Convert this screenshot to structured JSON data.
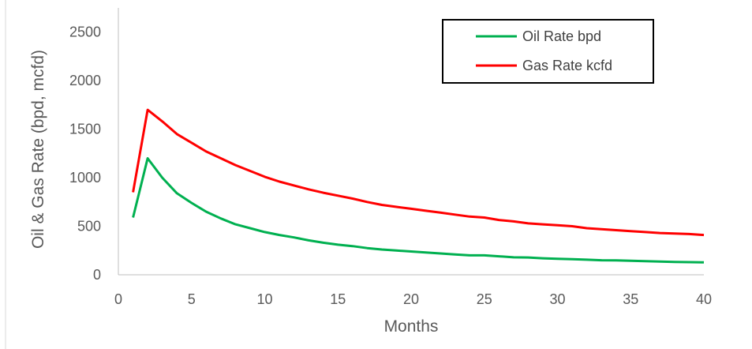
{
  "chart_data": {
    "type": "line",
    "xlabel": "Months",
    "ylabel": "Oil & Gas Rate (bpd, mcfd)",
    "xlim": [
      0,
      40
    ],
    "ylim": [
      0,
      2750
    ],
    "xticks": [
      0,
      5,
      10,
      15,
      20,
      25,
      30,
      35,
      40
    ],
    "yticks": [
      0,
      500,
      1000,
      1500,
      2000,
      2500
    ],
    "grid": false,
    "legend_position": "top-right",
    "x": [
      1,
      2,
      3,
      4,
      5,
      6,
      7,
      8,
      9,
      10,
      11,
      12,
      13,
      14,
      15,
      16,
      17,
      18,
      19,
      20,
      21,
      22,
      23,
      24,
      25,
      26,
      27,
      28,
      29,
      30,
      31,
      32,
      33,
      34,
      35,
      36,
      37,
      38,
      39,
      40
    ],
    "series": [
      {
        "name": "Oil Rate bpd",
        "color": "#00b050",
        "values": [
          590,
          1200,
          1000,
          840,
          740,
          650,
          580,
          520,
          480,
          440,
          410,
          385,
          355,
          330,
          310,
          295,
          275,
          260,
          250,
          240,
          230,
          220,
          210,
          200,
          200,
          190,
          180,
          178,
          170,
          165,
          160,
          155,
          150,
          148,
          145,
          140,
          137,
          133,
          130,
          128
        ]
      },
      {
        "name": "Gas Rate kcfd",
        "color": "#ff0000",
        "values": [
          850,
          1700,
          1580,
          1450,
          1360,
          1270,
          1200,
          1130,
          1070,
          1010,
          960,
          920,
          880,
          845,
          815,
          785,
          750,
          720,
          700,
          680,
          660,
          640,
          620,
          600,
          590,
          565,
          550,
          530,
          520,
          510,
          500,
          480,
          470,
          460,
          450,
          440,
          430,
          425,
          420,
          410
        ]
      }
    ]
  }
}
